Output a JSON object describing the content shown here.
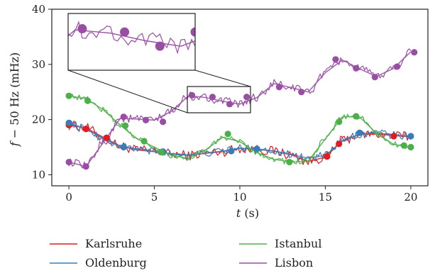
{
  "chart_data": {
    "type": "line",
    "xlabel_var": "t",
    "xlabel_unit": "(s)",
    "ylabel_var": "f",
    "ylabel_rest": " − 50 Hz (mHz)",
    "xlim": [
      -1,
      21
    ],
    "ylim": [
      8,
      40
    ],
    "xticks": [
      "0",
      "5",
      "10",
      "15",
      "20"
    ],
    "yticks": [
      "10",
      "20",
      "30",
      "40"
    ],
    "legend_position": "bottom",
    "inset": {
      "xlim": [
        6.8,
        10.4
      ],
      "ylim": [
        20.6,
        25.8
      ]
    },
    "series": [
      {
        "name": "Karlsruhe",
        "color": "#e41a1c",
        "noise": 0.9,
        "x": [
          0,
          1,
          2,
          3,
          4,
          5,
          6,
          7,
          8,
          9,
          10,
          11,
          12,
          13,
          14,
          15,
          16,
          17,
          18,
          19,
          20
        ],
        "y": [
          19.0,
          18.5,
          16.8,
          15.2,
          14.5,
          14.2,
          13.8,
          13.5,
          13.9,
          14.2,
          14.8,
          14.6,
          14.3,
          13.6,
          12.4,
          13.2,
          16.2,
          17.3,
          17.4,
          17.1,
          16.9
        ],
        "markers": [
          [
            0,
            19.0
          ],
          [
            1,
            18.3
          ],
          [
            2.2,
            16.7
          ],
          [
            15.1,
            13.3
          ],
          [
            15.8,
            15.6
          ],
          [
            19,
            17.0
          ]
        ]
      },
      {
        "name": "Oldenburg",
        "color": "#377eb8",
        "noise": 0.7,
        "x": [
          0,
          1,
          2,
          3,
          4,
          5,
          6,
          7,
          8,
          9,
          10,
          11,
          12,
          13,
          14,
          15,
          16,
          17,
          18,
          19,
          20
        ],
        "y": [
          19.4,
          18.3,
          16.6,
          15.1,
          14.7,
          14.2,
          13.8,
          13.6,
          13.9,
          14.3,
          14.8,
          14.7,
          14.3,
          13.7,
          13.0,
          13.5,
          16.1,
          17.3,
          17.6,
          17.2,
          17.0
        ],
        "markers": [
          [
            0,
            19.4
          ],
          [
            3.2,
            15.0
          ],
          [
            5.5,
            14.2
          ],
          [
            9.5,
            14.3
          ],
          [
            11,
            14.7
          ],
          [
            17,
            17.6
          ],
          [
            20,
            17.0
          ]
        ]
      },
      {
        "name": "Istanbul",
        "color": "#4daf4a",
        "noise": 0.5,
        "x": [
          0,
          1,
          2,
          3,
          4,
          5,
          6,
          7,
          8,
          9,
          10,
          11,
          12,
          13,
          14,
          15,
          16,
          17,
          18,
          19,
          20
        ],
        "y": [
          24.3,
          23.8,
          21.8,
          19.0,
          16.5,
          15.0,
          13.5,
          13.0,
          14.5,
          16.8,
          16.0,
          14.0,
          12.8,
          12.3,
          12.5,
          16.5,
          20.5,
          20.5,
          17.5,
          15.5,
          15.0
        ],
        "markers": [
          [
            0,
            24.3
          ],
          [
            1.1,
            23.4
          ],
          [
            3.3,
            18.9
          ],
          [
            4.4,
            16.1
          ],
          [
            5.4,
            14.1
          ],
          [
            9.3,
            17.4
          ],
          [
            12.9,
            12.3
          ],
          [
            15.8,
            19.6
          ],
          [
            16.8,
            20.6
          ],
          [
            19.6,
            15.3
          ],
          [
            20,
            15.0
          ]
        ]
      },
      {
        "name": "Lisbon",
        "color": "#984ea3",
        "noise": 0.8,
        "x": [
          0,
          1,
          2,
          3,
          4,
          5,
          6,
          7,
          8,
          9,
          10,
          11,
          12,
          13,
          14,
          15,
          16,
          17,
          18,
          19,
          20
        ],
        "y": [
          12.3,
          11.5,
          15.8,
          20.2,
          20.1,
          19.9,
          21.5,
          24.3,
          24.0,
          23.3,
          22.8,
          24.0,
          26.5,
          25.8,
          25.0,
          28.5,
          30.8,
          29.2,
          27.8,
          29.3,
          32.3
        ],
        "markers": [
          [
            0,
            12.3
          ],
          [
            1,
            11.5
          ],
          [
            3.2,
            20.5
          ],
          [
            4.5,
            19.9
          ],
          [
            5.5,
            19.6
          ],
          [
            7.2,
            24.4
          ],
          [
            8.4,
            24.1
          ],
          [
            9.4,
            22.8
          ],
          [
            10.4,
            24.1
          ],
          [
            12.3,
            25.9
          ],
          [
            13.6,
            25.0
          ],
          [
            15.6,
            30.9
          ],
          [
            16.8,
            29.3
          ],
          [
            17.9,
            27.7
          ],
          [
            19.2,
            29.6
          ],
          [
            20.2,
            32.2
          ]
        ]
      }
    ]
  }
}
